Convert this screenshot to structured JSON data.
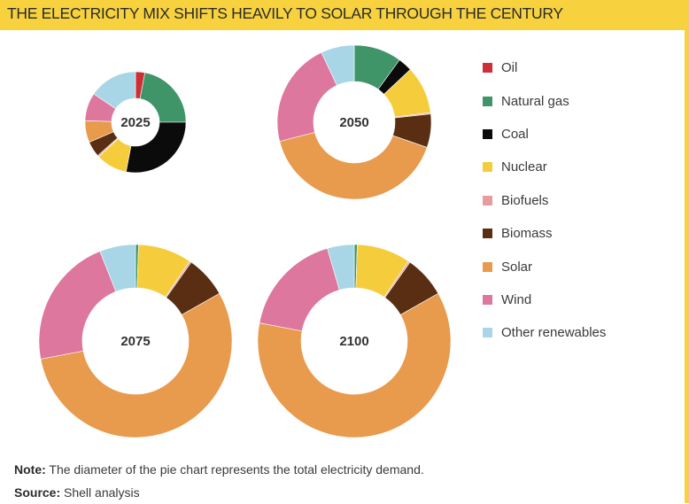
{
  "title": "THE ELECTRICITY MIX SHIFTS HEAVILY TO SOLAR THROUGH THE CENTURY",
  "colors": {
    "Oil": "#cc2f36",
    "Natural gas": "#3f9468",
    "Coal": "#0b0b0b",
    "Nuclear": "#f5cd3c",
    "Biofuels": "#e79da0",
    "Biomass": "#5a2e12",
    "Solar": "#e89a4d",
    "Wind": "#dd779d",
    "Other renewables": "#a8d6e6",
    "title_bar": "#f7d23e"
  },
  "chart_data": [
    {
      "type": "pie",
      "label": "2025",
      "categories": [
        "Oil",
        "Natural gas",
        "Coal",
        "Nuclear",
        "Biofuels",
        "Biomass",
        "Solar",
        "Wind",
        "Other renewables"
      ],
      "values": [
        3,
        22,
        28,
        10,
        0.5,
        5,
        7,
        9,
        15.5
      ]
    },
    {
      "type": "pie",
      "label": "2050",
      "categories": [
        "Oil",
        "Natural gas",
        "Coal",
        "Nuclear",
        "Biofuels",
        "Biomass",
        "Solar",
        "Wind",
        "Other renewables"
      ],
      "values": [
        0,
        10,
        3,
        10,
        0.3,
        7,
        40.7,
        22,
        7
      ]
    },
    {
      "type": "pie",
      "label": "2075",
      "categories": [
        "Oil",
        "Natural gas",
        "Coal",
        "Nuclear",
        "Biofuels",
        "Biomass",
        "Solar",
        "Wind",
        "Other renewables"
      ],
      "values": [
        0,
        0.5,
        0,
        9,
        0.3,
        7,
        55.2,
        22,
        6
      ]
    },
    {
      "type": "pie",
      "label": "2100",
      "categories": [
        "Oil",
        "Natural gas",
        "Coal",
        "Nuclear",
        "Biofuels",
        "Biomass",
        "Solar",
        "Wind",
        "Other renewables"
      ],
      "values": [
        0,
        0.5,
        0,
        9,
        0.3,
        7,
        61.2,
        17.5,
        4.5
      ]
    }
  ],
  "legend": [
    {
      "label": "Oil",
      "color": "#cc2f36"
    },
    {
      "label": "Natural gas",
      "color": "#3f9468"
    },
    {
      "label": "Coal",
      "color": "#0b0b0b"
    },
    {
      "label": "Nuclear",
      "color": "#f5cd3c"
    },
    {
      "label": "Biofuels",
      "color": "#e79da0"
    },
    {
      "label": "Biomass",
      "color": "#5a2e12"
    },
    {
      "label": "Solar",
      "color": "#e89a4d"
    },
    {
      "label": "Wind",
      "color": "#dd779d"
    },
    {
      "label": "Other renewables",
      "color": "#a8d6e6"
    }
  ],
  "note": {
    "label": "Note:",
    "text": "The diameter of the pie chart represents the total electricity demand."
  },
  "source": {
    "label": "Source:",
    "text": "Shell analysis"
  }
}
